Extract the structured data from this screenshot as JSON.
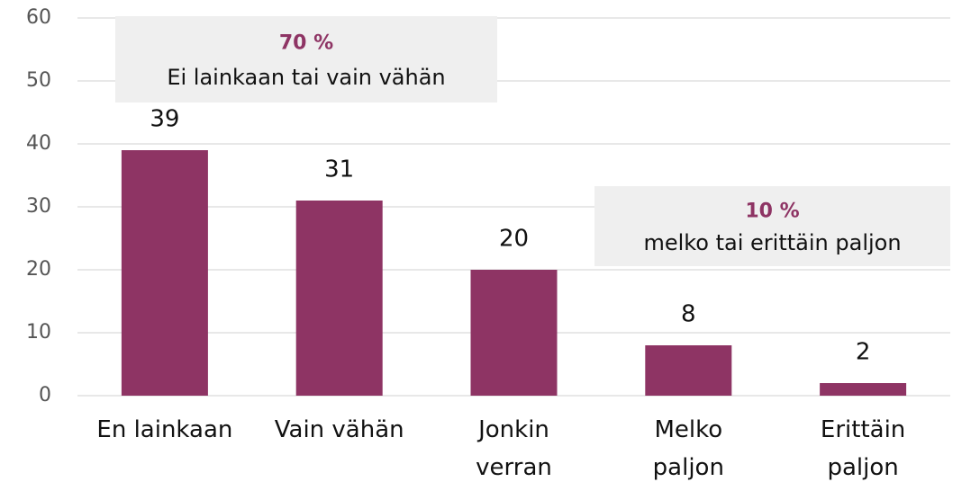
{
  "chart_data": {
    "type": "bar",
    "categories": [
      "En lainkaan",
      "Vain vähän",
      "Jonkin\nverran",
      "Melko\npaljon",
      "Erittäin\npaljon"
    ],
    "values": [
      39,
      31,
      20,
      8,
      2
    ],
    "color": "#8e3464",
    "ylim": [
      0,
      60
    ],
    "yticks": [
      0,
      10,
      20,
      30,
      40,
      50,
      60
    ],
    "grid": true,
    "annotations": [
      {
        "highlight": "70 %",
        "text": "Ei lainkaan tai vain vähän"
      },
      {
        "highlight": "10 %",
        "text": "melko tai erittäin paljon"
      }
    ]
  }
}
